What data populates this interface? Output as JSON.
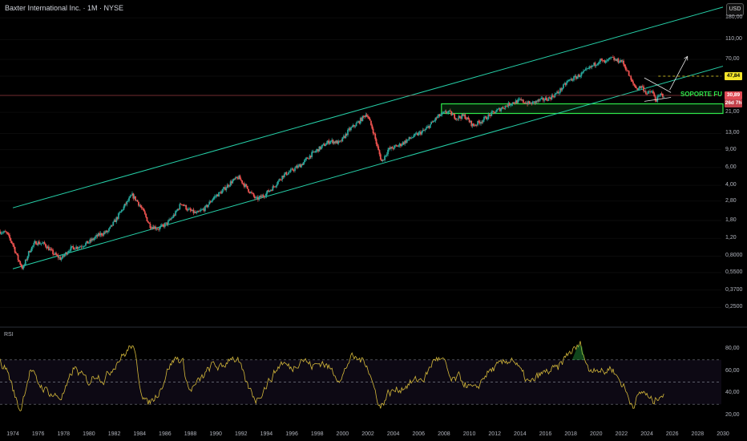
{
  "header": {
    "title": "Baxter International Inc. · 1M · NYSE",
    "currency_button": "USD"
  },
  "annotations": {
    "support_label": "SOPORTE FUERTE"
  },
  "price_badges": {
    "target": "47,84",
    "last": "30,89",
    "countdown": "26d 7h"
  },
  "rsi": {
    "label": "RSI"
  },
  "colors": {
    "up": "#26a69a",
    "down": "#ef5350",
    "channel": "#26d0a8",
    "support_zone": "#2ee84a",
    "rsi_line": "#d4b83a",
    "price_line": "#b8424a"
  },
  "chart_data": [
    {
      "type": "candlestick",
      "scale": "log",
      "ylim": [
        0.2,
        230
      ],
      "xlim": [
        1973,
        2030
      ],
      "x_ticks": [
        "1974",
        "1976",
        "1978",
        "1980",
        "1982",
        "1984",
        "1986",
        "1988",
        "1990",
        "1992",
        "1994",
        "1996",
        "1998",
        "2000",
        "2002",
        "2004",
        "2006",
        "2008",
        "2010",
        "2012",
        "2014",
        "2016",
        "2018",
        "2020",
        "2022",
        "2024",
        "2026",
        "2028",
        "2030"
      ],
      "y_ticks": [
        "180,00",
        "110,00",
        "70,00",
        "47,84",
        "30,89",
        "21,00",
        "13,00",
        "9,00",
        "6,00",
        "4,00",
        "2,80",
        "1,80",
        "1,20",
        "0,8000",
        "0,5500",
        "0,3700",
        "0,2500"
      ],
      "price_path": [
        [
          1973.0,
          1.4
        ],
        [
          1973.5,
          1.35
        ],
        [
          1974.0,
          1.05
        ],
        [
          1974.4,
          0.75
        ],
        [
          1974.8,
          0.6
        ],
        [
          1975.3,
          0.9
        ],
        [
          1975.8,
          1.1
        ],
        [
          1976.5,
          1.05
        ],
        [
          1977.2,
          0.85
        ],
        [
          1977.8,
          0.75
        ],
        [
          1978.5,
          0.95
        ],
        [
          1979.3,
          1.0
        ],
        [
          1980.0,
          1.1
        ],
        [
          1980.8,
          1.3
        ],
        [
          1981.5,
          1.4
        ],
        [
          1982.2,
          1.9
        ],
        [
          1982.8,
          2.5
        ],
        [
          1983.4,
          3.2
        ],
        [
          1983.8,
          2.8
        ],
        [
          1984.3,
          2.2
        ],
        [
          1984.8,
          1.6
        ],
        [
          1985.5,
          1.5
        ],
        [
          1986.2,
          1.7
        ],
        [
          1986.8,
          2.1
        ],
        [
          1987.3,
          2.7
        ],
        [
          1987.8,
          2.3
        ],
        [
          1988.5,
          2.1
        ],
        [
          1989.2,
          2.4
        ],
        [
          1989.8,
          3.0
        ],
        [
          1990.5,
          3.5
        ],
        [
          1991.2,
          4.3
        ],
        [
          1991.8,
          4.8
        ],
        [
          1992.5,
          3.7
        ],
        [
          1993.2,
          2.9
        ],
        [
          1993.8,
          3.2
        ],
        [
          1994.5,
          3.8
        ],
        [
          1995.3,
          5.0
        ],
        [
          1996.0,
          5.6
        ],
        [
          1996.8,
          6.5
        ],
        [
          1997.5,
          8.0
        ],
        [
          1998.3,
          9.5
        ],
        [
          1999.0,
          11.0
        ],
        [
          1999.8,
          10.5
        ],
        [
          2000.5,
          14.0
        ],
        [
          2001.3,
          17.0
        ],
        [
          2001.9,
          20.5
        ],
        [
          2002.4,
          14.0
        ],
        [
          2002.8,
          9.0
        ],
        [
          2003.1,
          6.8
        ],
        [
          2003.6,
          9.0
        ],
        [
          2004.5,
          10.0
        ],
        [
          2005.5,
          12.0
        ],
        [
          2006.5,
          14.0
        ],
        [
          2007.5,
          19.0
        ],
        [
          2008.3,
          21.5
        ],
        [
          2009.0,
          18.5
        ],
        [
          2009.6,
          19.5
        ],
        [
          2010.3,
          15.5
        ],
        [
          2011.0,
          17.5
        ],
        [
          2011.8,
          20.5
        ],
        [
          2012.5,
          23.0
        ],
        [
          2013.3,
          26.0
        ],
        [
          2014.0,
          27.5
        ],
        [
          2014.8,
          25.5
        ],
        [
          2015.5,
          27.5
        ],
        [
          2016.3,
          29.0
        ],
        [
          2017.0,
          33.0
        ],
        [
          2017.8,
          43.0
        ],
        [
          2018.6,
          48.0
        ],
        [
          2019.3,
          55.0
        ],
        [
          2019.9,
          63.0
        ],
        [
          2020.3,
          69.0
        ],
        [
          2020.7,
          65.0
        ],
        [
          2021.2,
          72.0
        ],
        [
          2021.6,
          68.0
        ],
        [
          2022.0,
          68.0
        ],
        [
          2022.4,
          56.0
        ],
        [
          2022.8,
          42.0
        ],
        [
          2023.2,
          36.0
        ],
        [
          2023.6,
          38.0
        ],
        [
          2024.0,
          32.0
        ],
        [
          2024.4,
          34.0
        ],
        [
          2024.7,
          27.5
        ],
        [
          2025.1,
          31.5
        ],
        [
          2025.4,
          30.89
        ]
      ],
      "channel": {
        "upper": {
          "start": [
            1974.0,
            2.4
          ],
          "end": [
            2030.0,
            230.0
          ]
        },
        "lower": {
          "start": [
            1974.0,
            0.6
          ],
          "end": [
            2030.0,
            60.0
          ]
        }
      },
      "support_zone": {
        "x": [
          2007.8,
          2030.0
        ],
        "y": [
          20.5,
          25.5
        ]
      },
      "price_line": 30.89,
      "target_line": {
        "y": 47.84,
        "x_start": 2024.9
      },
      "projection_arrow": {
        "from": [
          2025.8,
          35.0
        ],
        "to": [
          2027.2,
          75.0
        ]
      }
    },
    {
      "type": "line",
      "title": "RSI",
      "ylim": [
        14,
        90
      ],
      "y_ticks": [
        80,
        60,
        40,
        20
      ],
      "bands": [
        30,
        50,
        70
      ],
      "rsi_path": [
        [
          1973.0,
          68
        ],
        [
          1973.6,
          60
        ],
        [
          1974.2,
          36
        ],
        [
          1974.6,
          24
        ],
        [
          1975.0,
          45
        ],
        [
          1975.4,
          62
        ],
        [
          1975.9,
          50
        ],
        [
          1976.5,
          44
        ],
        [
          1977.2,
          38
        ],
        [
          1977.8,
          36
        ],
        [
          1978.3,
          46
        ],
        [
          1978.8,
          63
        ],
        [
          1979.4,
          56
        ],
        [
          1980.0,
          50
        ],
        [
          1980.6,
          58
        ],
        [
          1981.2,
          52
        ],
        [
          1981.8,
          62
        ],
        [
          1982.3,
          70
        ],
        [
          1982.9,
          76
        ],
        [
          1983.4,
          84
        ],
        [
          1983.7,
          70
        ],
        [
          1984.1,
          44
        ],
        [
          1984.6,
          30
        ],
        [
          1985.2,
          36
        ],
        [
          1985.8,
          48
        ],
        [
          1986.3,
          64
        ],
        [
          1986.9,
          72
        ],
        [
          1987.4,
          68
        ],
        [
          1987.9,
          42
        ],
        [
          1988.5,
          48
        ],
        [
          1989.1,
          56
        ],
        [
          1989.8,
          66
        ],
        [
          1990.5,
          62
        ],
        [
          1991.2,
          74
        ],
        [
          1991.8,
          68
        ],
        [
          1992.5,
          46
        ],
        [
          1993.2,
          34
        ],
        [
          1993.8,
          44
        ],
        [
          1994.5,
          56
        ],
        [
          1995.2,
          68
        ],
        [
          1996.0,
          62
        ],
        [
          1996.8,
          72
        ],
        [
          1997.6,
          64
        ],
        [
          1998.4,
          68
        ],
        [
          1999.2,
          60
        ],
        [
          1999.9,
          52
        ],
        [
          2000.6,
          72
        ],
        [
          2001.4,
          70
        ],
        [
          2001.9,
          68
        ],
        [
          2002.5,
          44
        ],
        [
          2003.0,
          27
        ],
        [
          2003.6,
          40
        ],
        [
          2004.5,
          44
        ],
        [
          2005.5,
          50
        ],
        [
          2006.5,
          54
        ],
        [
          2007.3,
          72
        ],
        [
          2008.0,
          68
        ],
        [
          2008.6,
          50
        ],
        [
          2009.2,
          54
        ],
        [
          2009.9,
          46
        ],
        [
          2010.5,
          42
        ],
        [
          2011.2,
          56
        ],
        [
          2011.9,
          62
        ],
        [
          2012.6,
          66
        ],
        [
          2013.4,
          72
        ],
        [
          2014.1,
          58
        ],
        [
          2014.8,
          48
        ],
        [
          2015.5,
          56
        ],
        [
          2016.3,
          60
        ],
        [
          2017.0,
          62
        ],
        [
          2017.8,
          76
        ],
        [
          2018.4,
          80
        ],
        [
          2018.8,
          84
        ],
        [
          2019.4,
          60
        ],
        [
          2020.0,
          64
        ],
        [
          2020.6,
          58
        ],
        [
          2021.2,
          64
        ],
        [
          2021.7,
          54
        ],
        [
          2022.2,
          46
        ],
        [
          2022.6,
          34
        ],
        [
          2022.9,
          30
        ],
        [
          2023.4,
          38
        ],
        [
          2023.8,
          42
        ],
        [
          2024.2,
          34
        ],
        [
          2024.6,
          32
        ],
        [
          2025.0,
          40
        ],
        [
          2025.4,
          38
        ]
      ]
    }
  ]
}
